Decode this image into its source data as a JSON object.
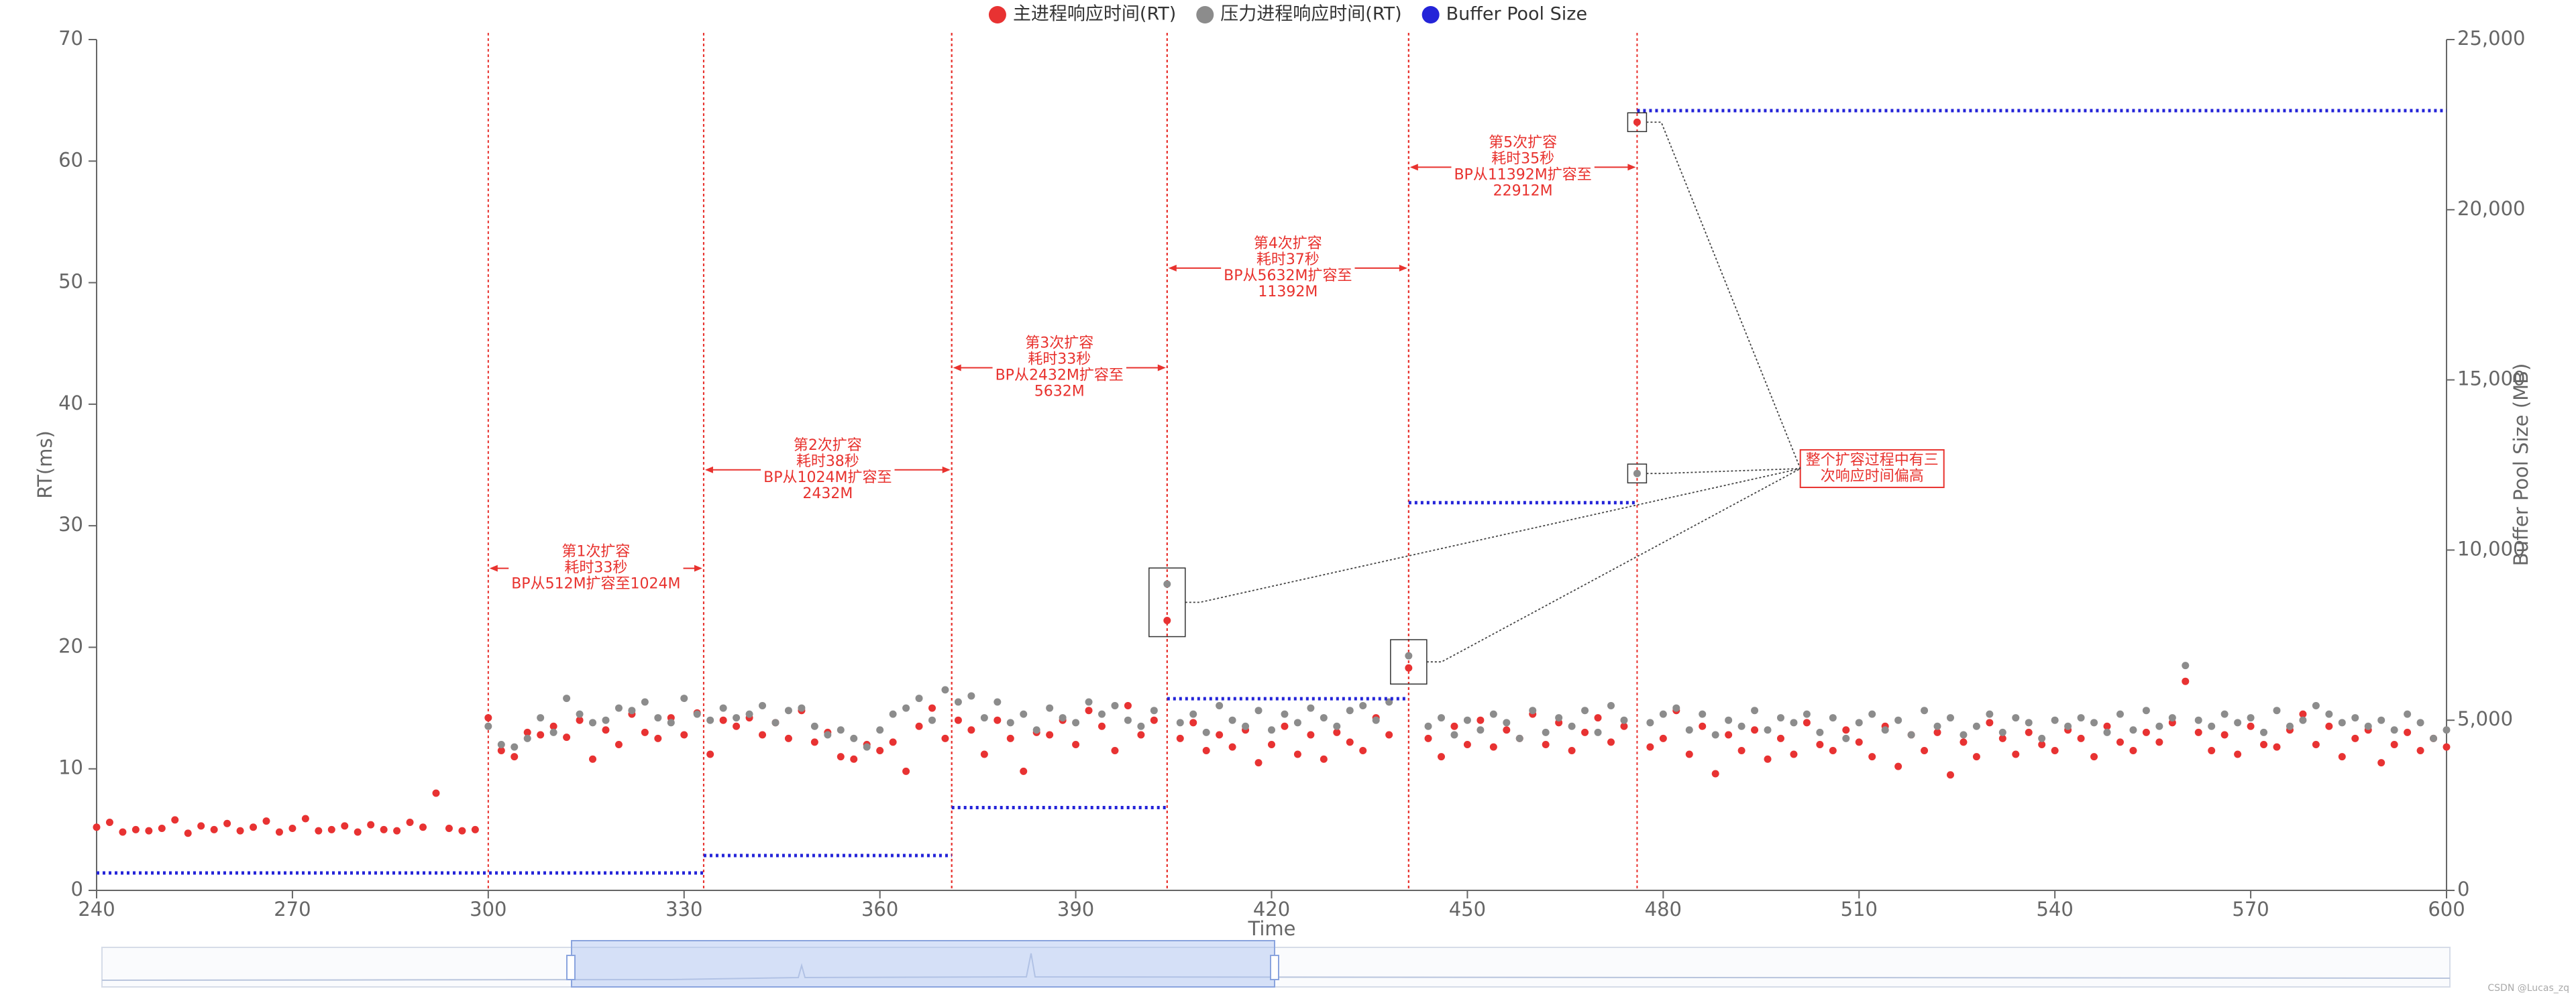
{
  "chart_data": {
    "type": "scatter",
    "x_label": "Time",
    "y_label": "RT(ms)",
    "y2_label": "Buffer Pool Size (MB)",
    "xlim": [
      240,
      600
    ],
    "xticks": [
      240,
      270,
      300,
      330,
      360,
      390,
      420,
      450,
      480,
      510,
      540,
      570,
      600
    ],
    "ylim": [
      0,
      70
    ],
    "yticks": [
      0,
      10,
      20,
      30,
      40,
      50,
      60,
      70
    ],
    "y2lim": [
      0,
      25000
    ],
    "y2ticks": [
      0,
      {
        "value": 5000,
        "label": "5,000"
      },
      {
        "value": 10000,
        "label": "10,000"
      },
      {
        "value": 15000,
        "label": "15,000"
      },
      {
        "value": 20000,
        "label": "20,000"
      },
      {
        "value": 25000,
        "label": "25,000"
      }
    ],
    "legend": "top",
    "x": [
      240,
      242,
      244,
      246,
      248,
      250,
      252,
      254,
      256,
      258,
      260,
      262,
      264,
      266,
      268,
      270,
      272,
      274,
      276,
      278,
      280,
      282,
      284,
      286,
      288,
      290,
      292,
      294,
      296,
      298,
      300,
      302,
      304,
      306,
      308,
      310,
      312,
      314,
      316,
      318,
      320,
      322,
      324,
      326,
      328,
      330,
      332,
      334,
      336,
      338,
      340,
      342,
      344,
      346,
      348,
      350,
      352,
      354,
      356,
      358,
      360,
      362,
      364,
      366,
      368,
      370,
      372,
      374,
      376,
      378,
      380,
      382,
      384,
      386,
      388,
      390,
      392,
      394,
      396,
      398,
      400,
      402,
      404,
      406,
      408,
      410,
      412,
      414,
      416,
      418,
      420,
      422,
      424,
      426,
      428,
      430,
      432,
      434,
      436,
      438,
      441,
      444,
      446,
      448,
      450,
      452,
      454,
      456,
      458,
      460,
      462,
      464,
      466,
      468,
      470,
      472,
      474,
      476,
      478,
      480,
      482,
      484,
      486,
      488,
      490,
      492,
      494,
      496,
      498,
      500,
      502,
      504,
      506,
      508,
      510,
      512,
      514,
      516,
      518,
      520,
      522,
      524,
      526,
      528,
      530,
      532,
      534,
      536,
      538,
      540,
      542,
      544,
      546,
      548,
      550,
      552,
      554,
      556,
      558,
      560,
      562,
      564,
      566,
      568,
      570,
      572,
      574,
      576,
      578,
      580,
      582,
      584,
      586,
      588,
      590,
      592,
      594,
      596,
      598,
      600
    ],
    "series": [
      {
        "name": "主进程响应时间(RT)",
        "color": "#e83232",
        "values": [
          5.2,
          5.6,
          4.8,
          5.0,
          4.9,
          5.1,
          5.8,
          4.7,
          5.3,
          5.0,
          5.5,
          4.9,
          5.2,
          5.7,
          4.8,
          5.1,
          5.9,
          4.9,
          5.0,
          5.3,
          4.8,
          5.4,
          5.0,
          4.9,
          5.6,
          5.2,
          8.0,
          5.1,
          4.9,
          5.0,
          14.2,
          11.5,
          11.0,
          13.0,
          12.8,
          13.5,
          12.6,
          14.0,
          10.8,
          13.2,
          12.0,
          14.5,
          13.0,
          12.5,
          14.2,
          12.8,
          14.6,
          11.2,
          14.0,
          13.5,
          14.2,
          12.8,
          13.8,
          12.5,
          14.8,
          12.2,
          13.0,
          11.0,
          10.8,
          12.0,
          11.5,
          12.2,
          9.8,
          13.5,
          15.0,
          12.5,
          14.0,
          13.2,
          11.2,
          14.0,
          12.5,
          9.8,
          13.0,
          12.8,
          14.0,
          12.0,
          14.8,
          13.5,
          11.5,
          15.2,
          12.8,
          14.0,
          22.2,
          12.5,
          13.8,
          11.5,
          12.8,
          11.8,
          13.2,
          10.5,
          12.0,
          13.5,
          11.2,
          12.8,
          10.8,
          13.0,
          12.2,
          11.5,
          14.2,
          12.8,
          18.3,
          12.5,
          11.0,
          13.5,
          12.0,
          14.0,
          11.8,
          13.2,
          12.5,
          14.5,
          12.0,
          13.8,
          11.5,
          13.0,
          14.2,
          12.2,
          13.5,
          63.2,
          11.8,
          12.5,
          14.8,
          11.2,
          13.5,
          9.6,
          12.8,
          11.5,
          13.2,
          10.8,
          12.5,
          11.2,
          13.8,
          12.0,
          11.5,
          13.2,
          12.2,
          11.0,
          13.5,
          10.2,
          12.8,
          11.5,
          13.0,
          9.5,
          12.2,
          11.0,
          13.8,
          12.5,
          11.2,
          13.0,
          12.0,
          11.5,
          13.2,
          12.5,
          11.0,
          13.5,
          12.2,
          11.5,
          13.0,
          12.2,
          13.8,
          17.2,
          13.0,
          11.5,
          12.8,
          11.2,
          13.5,
          12.0,
          11.8,
          13.2,
          14.5,
          12.0,
          13.5,
          11.0,
          12.5,
          13.2,
          10.5,
          12.0,
          13.0,
          11.5,
          12.5,
          11.8
        ]
      },
      {
        "name": "压力进程响应时间(RT)",
        "color": "#8c8c8c",
        "values": [
          null,
          null,
          null,
          null,
          null,
          null,
          null,
          null,
          null,
          null,
          null,
          null,
          null,
          null,
          null,
          null,
          null,
          null,
          null,
          null,
          null,
          null,
          null,
          null,
          null,
          null,
          null,
          null,
          null,
          null,
          13.5,
          12.0,
          11.8,
          12.5,
          14.2,
          13.0,
          15.8,
          14.5,
          13.8,
          14.0,
          15.0,
          14.8,
          15.5,
          14.2,
          13.8,
          15.8,
          14.5,
          14.0,
          15.0,
          14.2,
          14.5,
          15.2,
          13.8,
          14.8,
          15.0,
          13.5,
          12.8,
          13.2,
          12.5,
          11.8,
          13.2,
          14.5,
          15.0,
          15.8,
          14.0,
          16.5,
          15.5,
          16.0,
          14.2,
          15.5,
          13.8,
          14.5,
          13.2,
          15.0,
          14.2,
          13.8,
          15.5,
          14.5,
          15.2,
          14.0,
          13.5,
          14.8,
          25.2,
          13.8,
          14.5,
          13.0,
          15.2,
          14.0,
          13.5,
          14.8,
          13.2,
          14.5,
          13.8,
          15.0,
          14.2,
          13.5,
          14.8,
          15.2,
          14.0,
          15.5,
          19.3,
          13.5,
          14.2,
          12.8,
          14.0,
          13.2,
          14.5,
          13.8,
          12.5,
          14.8,
          13.0,
          14.2,
          13.5,
          14.8,
          13.0,
          15.2,
          14.0,
          34.3,
          13.8,
          14.5,
          15.0,
          13.2,
          14.5,
          12.8,
          14.0,
          13.5,
          14.8,
          13.2,
          14.2,
          13.8,
          14.5,
          13.0,
          14.2,
          12.5,
          13.8,
          14.5,
          13.2,
          14.0,
          12.8,
          14.8,
          13.5,
          14.2,
          12.8,
          13.5,
          14.5,
          13.0,
          14.2,
          13.8,
          12.5,
          14.0,
          13.5,
          14.2,
          13.8,
          13.0,
          14.5,
          13.2,
          14.8,
          13.5,
          14.2,
          18.5,
          14.0,
          13.5,
          14.5,
          13.8,
          14.2,
          13.0,
          14.8,
          13.5,
          14.0,
          15.2,
          14.5,
          13.8,
          14.2,
          13.5,
          14.0,
          13.2,
          14.5,
          13.8,
          12.5,
          13.2
        ]
      },
      {
        "name": "Buffer Pool Size",
        "color": "#2424d8",
        "axis": "y2",
        "x_start": [
          240,
          333,
          371,
          404,
          441,
          476
        ],
        "x_end": [
          333,
          371,
          404,
          441,
          476,
          600
        ],
        "values": [
          512,
          1024,
          2432,
          5632,
          11392,
          22912
        ]
      }
    ],
    "annotations": [
      {
        "x_from": 300,
        "x_to": 333,
        "y": 26.5,
        "text": [
          "第1次扩容",
          "耗时33秒",
          "BP从512M扩容至1024M"
        ]
      },
      {
        "x_from": 333,
        "x_to": 371,
        "y": 34.6,
        "text": [
          "第2次扩容",
          "耗时38秒",
          "BP从1024M扩容至",
          "2432M"
        ]
      },
      {
        "x_from": 371,
        "x_to": 404,
        "y": 43,
        "text": [
          "第3次扩容",
          "耗时33秒",
          "BP从2432M扩容至",
          "5632M"
        ]
      },
      {
        "x_from": 404,
        "x_to": 441,
        "y": 51.2,
        "text": [
          "第4次扩容",
          "耗时37秒",
          "BP从5632M扩容至",
          "11392M"
        ]
      },
      {
        "x_from": 441,
        "x_to": 476,
        "y": 59.5,
        "text": [
          "第5次扩容",
          "耗时35秒",
          "BP从11392M扩容至",
          "22912M"
        ]
      }
    ],
    "callout": {
      "x": 512,
      "y": 34.7,
      "text": [
        "整个扩容过程中有三",
        "次响应时间偏高"
      ]
    },
    "watermark": "CSDN @Lucas_zq"
  }
}
